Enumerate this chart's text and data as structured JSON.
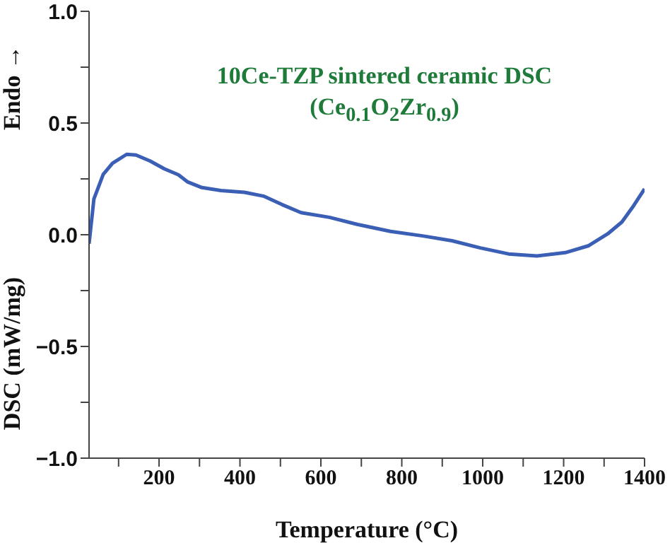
{
  "chart_data": {
    "type": "line",
    "xlabel": "Temperature (°C)",
    "ylabel": "DSC (mW/mg)",
    "annotations": [
      "10Ce-TZP sintered ceramic DSC",
      "(Ce$_{0.1}$O$_{2}$Zr$_{0.9}$)",
      "Endo →"
    ],
    "x": [
      27,
      39,
      62,
      85,
      120,
      143,
      178,
      213,
      248,
      271,
      306,
      353,
      411,
      458,
      504,
      551,
      621,
      691,
      772,
      854,
      924,
      994,
      1064,
      1134,
      1204,
      1262,
      1309,
      1344,
      1373,
      1400
    ],
    "series": [
      {
        "color": "#3a5fb5",
        "values": [
          -0.04,
          0.16,
          0.27,
          0.32,
          0.36,
          0.357,
          0.33,
          0.295,
          0.268,
          0.236,
          0.211,
          0.198,
          0.19,
          0.173,
          0.135,
          0.099,
          0.078,
          0.046,
          0.015,
          -0.006,
          -0.027,
          -0.059,
          -0.086,
          -0.095,
          -0.08,
          -0.049,
          0.004,
          0.057,
          0.13,
          0.205
        ]
      }
    ],
    "xlim": [
      27,
      1400
    ],
    "xticks": [
      {
        "value": 100,
        "label": null
      },
      200,
      {
        "value": 300,
        "label": null
      },
      400,
      {
        "value": 500,
        "label": null
      },
      600,
      {
        "value": 700,
        "label": null
      },
      800,
      {
        "value": 900,
        "label": null
      },
      1000,
      {
        "value": 1100,
        "label": null
      },
      1200,
      {
        "value": 1300,
        "label": null
      },
      1400
    ],
    "ylim": [
      -1,
      1
    ],
    "yticks": [
      {
        "value": -1,
        "label": "−1.0"
      },
      {
        "value": -0.75,
        "label": null
      },
      {
        "value": -0.5,
        "label": "−0.5"
      },
      {
        "value": -0.25,
        "label": null
      },
      {
        "value": 0,
        "label": "0.0"
      },
      {
        "value": 0.25,
        "label": null
      },
      {
        "value": 0.5,
        "label": "0.5"
      },
      {
        "value": 0.75,
        "label": null
      },
      {
        "value": 1,
        "label": "1.0"
      }
    ],
    "grid": false,
    "legend": false,
    "marker": "none",
    "line_style": "solid"
  }
}
